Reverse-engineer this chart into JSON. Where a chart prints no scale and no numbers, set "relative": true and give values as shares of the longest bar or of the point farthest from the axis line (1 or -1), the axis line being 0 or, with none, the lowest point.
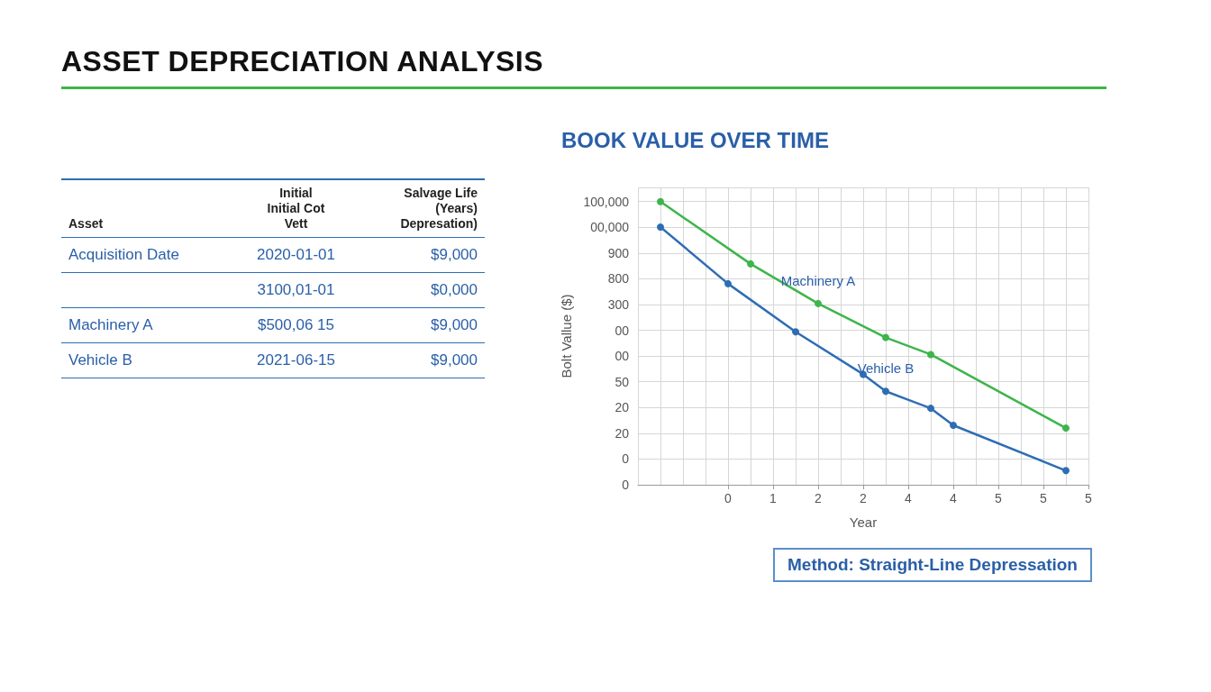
{
  "chart_data": [
    {
      "type": "other",
      "title": "ASSET DEPRECIATION ANALYSIS",
      "annotations": [
        "Asset",
        "Initial\nInitial Cot\nVett",
        "Salvage Life\n(Years)\nDepresation)",
        "Acquisition Date",
        "2020-01-01",
        "$9,000",
        null,
        "3100,01-01",
        "$0,000",
        "Machinery A",
        "$500,06 15",
        "$9,000",
        "Vehicle B",
        "2021-06-15",
        "$9,000"
      ]
    },
    {
      "type": "line",
      "title": "BOOK VALUE OVER TIME",
      "xlabel": "Year",
      "ylabel": "Bolt Vallue ($)",
      "relative": true,
      "grid": true,
      "marker": "circle",
      "categories": [
        null,
        null,
        null,
        null,
        "0",
        null,
        "1",
        null,
        "2",
        null,
        "2",
        null,
        "4",
        null,
        "4",
        null,
        "5",
        null,
        "5",
        null,
        "5"
      ],
      "series": [
        {
          "name": "Machinery A",
          "color": "#3db54a",
          "values": [
            null,
            1.0,
            null,
            null,
            null,
            0.78,
            null,
            null,
            0.64,
            null,
            null,
            0.52,
            null,
            0.46,
            null,
            null,
            null,
            null,
            null,
            0.2,
            null
          ]
        },
        {
          "name": "Vehicle B",
          "color": "#2e6db4",
          "values": [
            null,
            0.91,
            null,
            null,
            0.71,
            null,
            null,
            0.54,
            null,
            null,
            0.39,
            0.33,
            null,
            0.27,
            0.21,
            null,
            null,
            null,
            null,
            0.05,
            null
          ]
        }
      ],
      "annotations": [
        "100,000",
        "00,000",
        "900",
        "800",
        "300",
        "00",
        "00",
        "50",
        "20",
        "20",
        "0",
        "0",
        "Method: Straight-Line Depressation"
      ]
    }
  ]
}
